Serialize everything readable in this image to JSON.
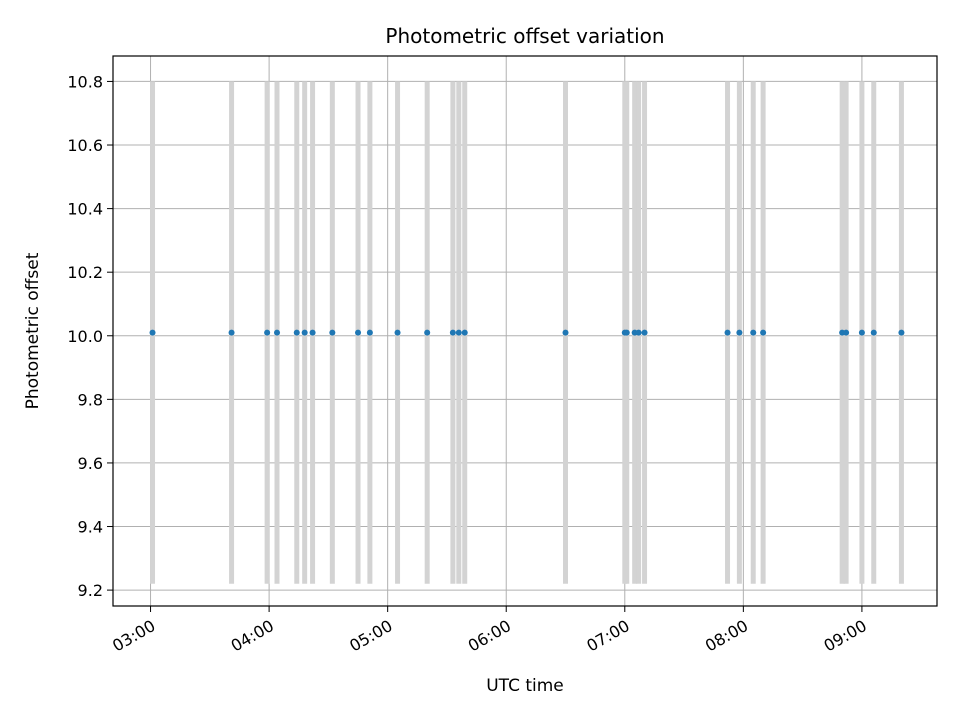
{
  "chart_data": {
    "type": "scatter",
    "title": "Photometric offset variation",
    "xlabel": "UTC time",
    "ylabel": "Photometric offset",
    "x_axis_kind": "time",
    "xlim": [
      "02:41",
      "09:38"
    ],
    "ylim": [
      9.15,
      10.88
    ],
    "grid": true,
    "xticks": [
      "03:00",
      "04:00",
      "05:00",
      "06:00",
      "07:00",
      "08:00",
      "09:00"
    ],
    "yticks": [
      "9.2",
      "9.4",
      "9.6",
      "9.8",
      "10.0",
      "10.2",
      "10.4",
      "10.6",
      "10.8"
    ],
    "series": [
      {
        "color": "#1f77b4",
        "times": [
          "03:01",
          "03:41",
          "03:59",
          "04:04",
          "04:14",
          "04:18",
          "04:22",
          "04:32",
          "04:45",
          "04:51",
          "05:05",
          "05:20",
          "05:33",
          "05:36",
          "05:39",
          "06:30",
          "07:00",
          "07:01",
          "07:05",
          "07:07",
          "07:10",
          "07:52",
          "07:58",
          "08:05",
          "08:10",
          "08:50",
          "08:52",
          "09:00",
          "09:06",
          "09:20"
        ],
        "values": [
          10.01,
          10.01,
          10.01,
          10.01,
          10.01,
          10.01,
          10.01,
          10.01,
          10.01,
          10.01,
          10.01,
          10.01,
          10.01,
          10.01,
          10.01,
          10.01,
          10.01,
          10.01,
          10.01,
          10.01,
          10.01,
          10.01,
          10.01,
          10.01,
          10.01,
          10.01,
          10.01,
          10.01,
          10.01,
          10.01
        ]
      }
    ],
    "vertical_bands": {
      "color": "#d3d3d3",
      "range": [
        9.22,
        10.8
      ],
      "times": [
        "03:01",
        "03:41",
        "03:59",
        "04:04",
        "04:14",
        "04:18",
        "04:22",
        "04:32",
        "04:45",
        "04:51",
        "05:05",
        "05:20",
        "05:33",
        "05:36",
        "05:39",
        "06:30",
        "07:00",
        "07:01",
        "07:05",
        "07:07",
        "07:10",
        "07:52",
        "07:58",
        "08:05",
        "08:10",
        "08:50",
        "08:52",
        "09:00",
        "09:06",
        "09:20"
      ]
    }
  }
}
